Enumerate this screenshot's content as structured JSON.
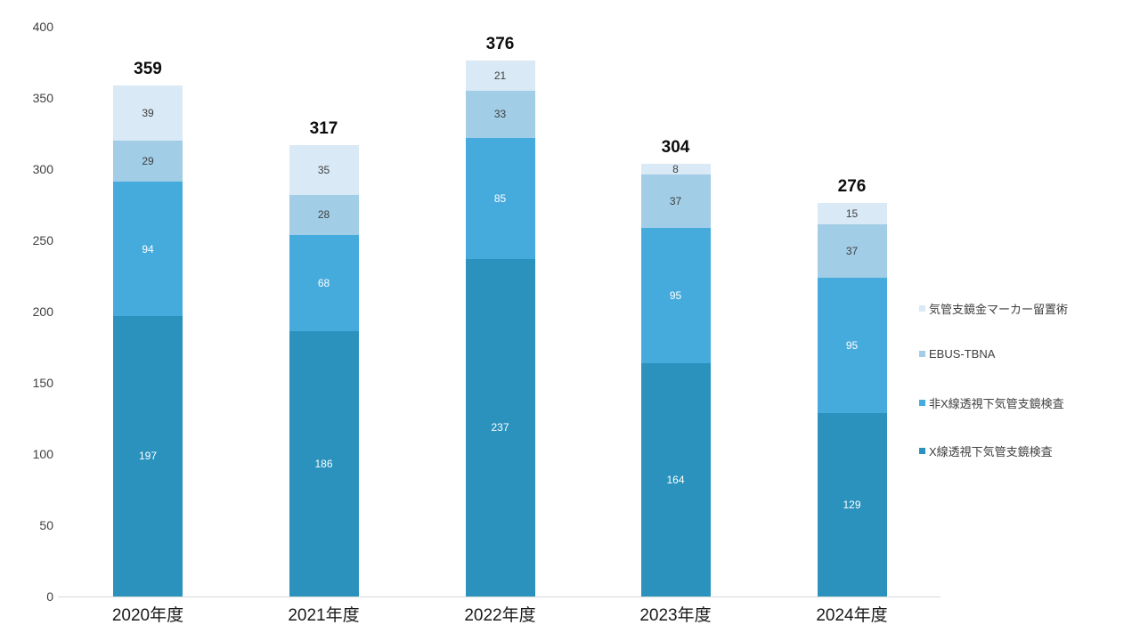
{
  "chart_data": {
    "type": "bar",
    "stacked": true,
    "title": "",
    "xlabel": "",
    "ylabel": "",
    "categories": [
      "2020年度",
      "2021年度",
      "2022年度",
      "2023年度",
      "2024年度"
    ],
    "series": [
      {
        "name": "X線透視下気管支鏡検査",
        "color": "#2a92bd",
        "label_color": "#ffffff",
        "values": [
          197,
          186,
          237,
          164,
          129
        ]
      },
      {
        "name": "非X線透視下気管支鏡検査",
        "color": "#45aadc",
        "label_color": "#ffffff",
        "values": [
          94,
          68,
          85,
          95,
          95
        ]
      },
      {
        "name": "EBUS-TBNA",
        "color": "#a1cde6",
        "label_color": "#404040",
        "values": [
          29,
          28,
          33,
          37,
          37
        ]
      },
      {
        "name": "気管支鏡金マーカー留置術",
        "color": "#d9e9f5",
        "label_color": "#404040",
        "values": [
          39,
          35,
          21,
          8,
          15
        ]
      }
    ],
    "totals": [
      359,
      317,
      376,
      304,
      276
    ],
    "y_ticks": [
      0,
      50,
      100,
      150,
      200,
      250,
      300,
      350,
      400
    ],
    "ylim": [
      0,
      400
    ],
    "grid": false,
    "legend_position": "right",
    "legend_order": [
      "気管支鏡金マーカー留置術",
      "EBUS-TBNA",
      "非X線透視下気管支鏡検査",
      "X線透視下気管支鏡検査"
    ],
    "axis_line_color": "#d9d9d9"
  }
}
